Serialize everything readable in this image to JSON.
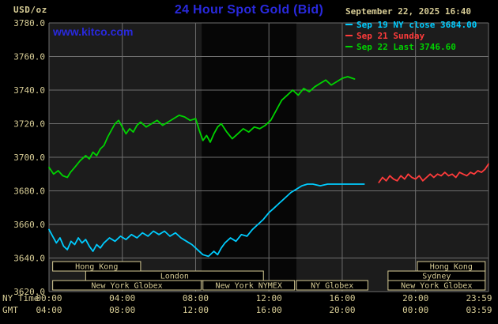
{
  "header": {
    "units_label": "USD/oz",
    "title": "24 Hour Spot Gold (Bid)",
    "datetime": "September 22, 2025 16:40",
    "watermark": "www.kitco.com"
  },
  "colors": {
    "background": "#000000",
    "plot_bg": "#1c1c1c",
    "band": "#060606",
    "grid": "#6e6e6e",
    "tan": "#d8cd96",
    "title_blue": "#2929dd",
    "watermark_blue": "#2929dd",
    "cyan": "#00ccff",
    "red": "#ff3b3b",
    "green": "#00d300",
    "session_fill": "#000000"
  },
  "legend": {
    "items": [
      {
        "id": "sep19",
        "label": "Sep 19 NY close 3684.00",
        "color": "#00ccff"
      },
      {
        "id": "sep21",
        "label": "Sep 21 Sunday",
        "color": "#ff3b3b"
      },
      {
        "id": "sep22",
        "label": "Sep 22 Last 3746.60",
        "color": "#00d300"
      }
    ]
  },
  "axes": {
    "ny_label": "NY Time",
    "gmt_label": "GMT",
    "y_tick_values": [
      3780,
      3760,
      3740,
      3720,
      3700,
      3680,
      3660,
      3640,
      3620
    ],
    "y_tick_labels": [
      "3780.0",
      "3760.0",
      "3740.0",
      "3720.0",
      "3700.0",
      "3680.0",
      "3660.0",
      "3640.0",
      "3620.0"
    ],
    "x_tick_hours": [
      0,
      4,
      8,
      12,
      16,
      20,
      23.983
    ],
    "x_ticks_ny": [
      "00:00",
      "04:00",
      "08:00",
      "12:00",
      "16:00",
      "20:00",
      "23:59"
    ],
    "x_ticks_gmt": [
      "04:00",
      "08:00",
      "12:00",
      "16:00",
      "20:00",
      "00:00",
      "03:59"
    ]
  },
  "sessions": {
    "rows": [
      {
        "row": 0,
        "label": "Hong Kong",
        "start": 0.2,
        "end": 5.0
      },
      {
        "row": 0,
        "label": "Hong Kong",
        "start": 20.1,
        "end": 23.8
      },
      {
        "row": 1,
        "label": "London",
        "start": 2.0,
        "end": 11.7
      },
      {
        "row": 1,
        "label": "Sydney",
        "start": 18.5,
        "end": 23.8
      },
      {
        "row": 2,
        "label": "New York Globex",
        "start": 0.2,
        "end": 8.3
      },
      {
        "row": 2,
        "label": "New York NYMEX",
        "start": 8.4,
        "end": 13.4
      },
      {
        "row": 2,
        "label": "NY Globex",
        "start": 13.5,
        "end": 17.4
      },
      {
        "row": 2,
        "label": "New York Globex",
        "start": 18.5,
        "end": 23.8
      }
    ]
  },
  "chart_data": {
    "type": "line",
    "title": "24 Hour Spot Gold (Bid)",
    "xlabel": "NY Time",
    "ylabel": "USD/oz",
    "ylim": [
      3620,
      3780
    ],
    "xlim_hours": [
      0,
      23.983
    ],
    "grid": true,
    "legend_position": "top-right",
    "shaded_region": {
      "start": 8.33,
      "end": 13.5
    },
    "series": [
      {
        "id": "sep19-ny-close",
        "name": "Sep 19 NY close 3684.00",
        "color": "#00ccff",
        "x": [
          0,
          0.2,
          0.4,
          0.6,
          0.8,
          1.0,
          1.2,
          1.4,
          1.6,
          1.8,
          2.0,
          2.2,
          2.4,
          2.6,
          2.8,
          3.0,
          3.3,
          3.6,
          3.9,
          4.2,
          4.5,
          4.8,
          5.1,
          5.4,
          5.7,
          6.0,
          6.3,
          6.6,
          6.9,
          7.2,
          7.5,
          7.8,
          8.1,
          8.4,
          8.7,
          9.0,
          9.2,
          9.4,
          9.6,
          9.9,
          10.2,
          10.5,
          10.8,
          11.1,
          11.4,
          11.7,
          12.0,
          12.3,
          12.6,
          12.9,
          13.2,
          13.5,
          13.8,
          14.1,
          14.4,
          14.8,
          15.2,
          15.6,
          16.0,
          16.4,
          16.8,
          17.2
        ],
        "y": [
          3657,
          3653,
          3649,
          3652,
          3647,
          3645,
          3650,
          3648,
          3652,
          3649,
          3651,
          3647,
          3644,
          3648,
          3646,
          3649,
          3652,
          3650,
          3653,
          3651,
          3654,
          3652,
          3655,
          3653,
          3656,
          3654,
          3656,
          3653,
          3655,
          3652,
          3650,
          3648,
          3645,
          3642,
          3641,
          3644,
          3642,
          3646,
          3649,
          3652,
          3650,
          3654,
          3653,
          3657,
          3660,
          3663,
          3667,
          3670,
          3673,
          3676,
          3679,
          3681,
          3683,
          3684,
          3684,
          3683,
          3684,
          3684,
          3684,
          3684,
          3684,
          3684
        ]
      },
      {
        "id": "sep21-sunday",
        "name": "Sep 21 Sunday",
        "color": "#ff3b3b",
        "x": [
          18.0,
          18.2,
          18.4,
          18.6,
          18.8,
          19.0,
          19.2,
          19.4,
          19.6,
          19.8,
          20.0,
          20.2,
          20.4,
          20.6,
          20.8,
          21.0,
          21.2,
          21.4,
          21.6,
          21.8,
          22.0,
          22.2,
          22.4,
          22.6,
          22.8,
          23.0,
          23.2,
          23.4,
          23.6,
          23.8,
          23.983
        ],
        "y": [
          3685,
          3688,
          3686,
          3689,
          3687,
          3686,
          3689,
          3687,
          3690,
          3688,
          3687,
          3689,
          3686,
          3688,
          3690,
          3688,
          3690,
          3689,
          3691,
          3689,
          3690,
          3688,
          3691,
          3690,
          3689,
          3691,
          3690,
          3692,
          3691,
          3693,
          3696
        ]
      },
      {
        "id": "sep22-last",
        "name": "Sep 22 Last 3746.60",
        "color": "#00d300",
        "x": [
          0,
          0.25,
          0.5,
          0.75,
          1.0,
          1.17,
          1.4,
          1.7,
          2.0,
          2.2,
          2.4,
          2.6,
          2.8,
          3.0,
          3.2,
          3.4,
          3.6,
          3.8,
          4.0,
          4.2,
          4.4,
          4.6,
          4.8,
          5.0,
          5.3,
          5.6,
          5.9,
          6.2,
          6.5,
          6.8,
          7.1,
          7.4,
          7.7,
          8.0,
          8.2,
          8.4,
          8.6,
          8.8,
          9.0,
          9.2,
          9.4,
          9.7,
          10.0,
          10.3,
          10.6,
          10.9,
          11.2,
          11.5,
          11.8,
          12.1,
          12.4,
          12.7,
          13.0,
          13.3,
          13.6,
          13.9,
          14.2,
          14.5,
          14.8,
          15.1,
          15.4,
          15.7,
          16.0,
          16.3,
          16.67
        ],
        "y": [
          3694,
          3690,
          3692,
          3689,
          3688,
          3691,
          3694,
          3698,
          3701,
          3699,
          3703,
          3701,
          3705,
          3707,
          3712,
          3716,
          3720,
          3722,
          3718,
          3714,
          3717,
          3715,
          3719,
          3721,
          3718,
          3720,
          3722,
          3719,
          3721,
          3723,
          3725,
          3724,
          3722,
          3723,
          3716,
          3710,
          3713,
          3709,
          3714,
          3718,
          3720,
          3715,
          3711,
          3714,
          3717,
          3715,
          3718,
          3717,
          3719,
          3722,
          3728,
          3734,
          3737,
          3740,
          3737,
          3741,
          3739,
          3742,
          3744,
          3746,
          3743,
          3745,
          3747,
          3748,
          3746.6
        ]
      }
    ]
  }
}
